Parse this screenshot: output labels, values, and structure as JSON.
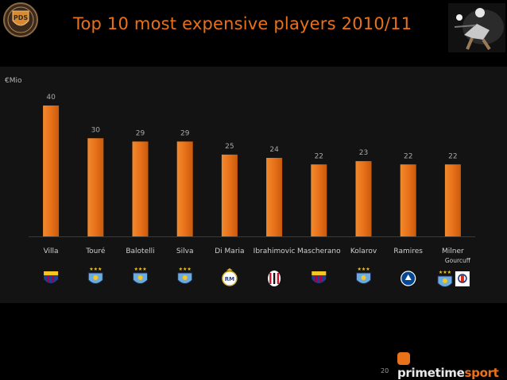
{
  "header": {
    "title": "Top 10 most expensive players 2010/11",
    "logo_text": "PDS"
  },
  "footer": {
    "page_number": "20",
    "brand_prefix": "primetime",
    "brand_suffix": "sport"
  },
  "colors": {
    "bar": "#e8711a",
    "title": "#e8711a",
    "label": "#cfcfcf",
    "value": "#a8a8a8"
  },
  "chart_data": {
    "type": "bar",
    "unit_label": "€Mio",
    "categories": [
      "Villa",
      "Touré",
      "Balotelli",
      "Silva",
      "Di Maria",
      "Ibrahimovic",
      "Mascherano",
      "Kolarov",
      "Ramires",
      "Milner"
    ],
    "sub_labels": [
      "",
      "",
      "",
      "",
      "",
      "",
      "",
      "",
      "",
      "Gourcuff"
    ],
    "values": [
      40,
      30,
      29,
      29,
      25,
      24,
      22,
      23,
      22,
      22
    ],
    "clubs": [
      [
        "barcelona-crest-icon"
      ],
      [
        "man-city-crest-icon"
      ],
      [
        "man-city-crest-icon"
      ],
      [
        "man-city-crest-icon"
      ],
      [
        "real-madrid-crest-icon"
      ],
      [
        "ac-milan-crest-icon"
      ],
      [
        "barcelona-crest-icon"
      ],
      [
        "man-city-crest-icon"
      ],
      [
        "chelsea-crest-icon"
      ],
      [
        "man-city-crest-icon",
        "lyon-crest-icon"
      ]
    ],
    "grid": false,
    "legend": "none"
  }
}
